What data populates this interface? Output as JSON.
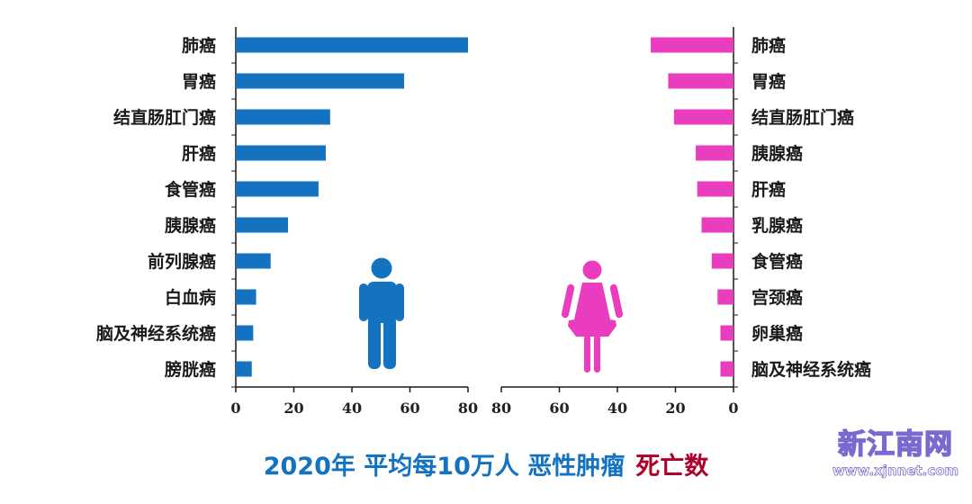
{
  "chart_data": [
    {
      "type": "bar",
      "orientation": "horizontal",
      "panel": "male",
      "categories": [
        "肺癌",
        "胃癌",
        "结直肠肛门癌",
        "肝癌",
        "食管癌",
        "胰腺癌",
        "前列腺癌",
        "白血病",
        "脑及神经系统癌",
        "膀胱癌"
      ],
      "values": [
        80,
        58,
        32.5,
        31,
        28.5,
        18,
        12,
        7,
        6,
        5.5
      ],
      "xlim": [
        0,
        80
      ],
      "xticks": [
        "0",
        "20",
        "40",
        "60",
        "80"
      ],
      "bar_color": "#1473c1",
      "label_side": "left",
      "icon": "male-figure-icon"
    },
    {
      "type": "bar",
      "orientation": "horizontal",
      "panel": "female",
      "categories": [
        "肺癌",
        "胃癌",
        "结直肠肛门癌",
        "胰腺癌",
        "肝癌",
        "乳腺癌",
        "食管癌",
        "宫颈癌",
        "卵巢癌",
        "脑及神经系统癌"
      ],
      "values": [
        28.5,
        22.5,
        20.5,
        13,
        12.5,
        11,
        7.5,
        5.5,
        4.5,
        4.5
      ],
      "xlim": [
        0,
        80
      ],
      "xticks": [
        "80",
        "60",
        "40",
        "20",
        "0"
      ],
      "x_direction": "reversed",
      "bar_color": "#e93cbf",
      "label_side": "right",
      "icon": "female-figure-icon"
    }
  ],
  "footer": {
    "part1": "2020年 平均每10万人 恶性肿瘤",
    "part2": "死亡数",
    "color1": "#1473c1",
    "color2": "#b0002a"
  },
  "watermark": {
    "name": "新江南网",
    "url": "www.xjnnet.com"
  }
}
